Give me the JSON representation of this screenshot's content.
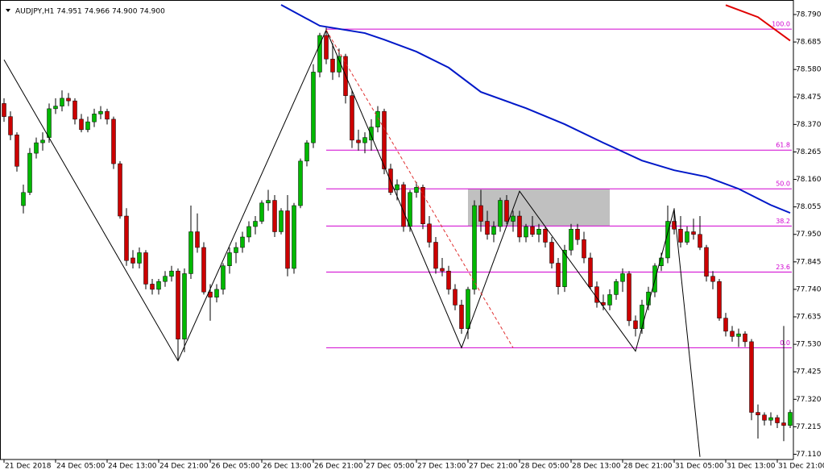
{
  "chart_data": {
    "type": "candlestick",
    "header": "AUDJPY,H1  74.951 74.966 74.900 74.900",
    "ylim": [
      77.09,
      78.83
    ],
    "yticks": [
      {
        "value": 78.79,
        "label": "78.790"
      },
      78.685,
      {
        "value": 78.58,
        "label": "78.580"
      },
      78.475,
      {
        "value": 78.37,
        "label": "78.370"
      },
      78.265,
      {
        "value": 78.16,
        "label": "78.160"
      },
      78.055,
      {
        "value": 77.95,
        "label": "77.950"
      },
      77.845,
      {
        "value": 77.74,
        "label": "77.740"
      },
      77.635,
      {
        "value": 77.53,
        "label": "77.530"
      },
      77.425,
      {
        "value": 77.32,
        "label": "77.320"
      },
      77.215,
      {
        "value": 77.11,
        "label": "77.110"
      }
    ],
    "categories": [
      "21 Dec 2018",
      null,
      null,
      null,
      null,
      null,
      null,
      null,
      "24 Dec 05:00",
      null,
      null,
      null,
      null,
      null,
      null,
      null,
      "24 Dec 13:00",
      null,
      null,
      null,
      null,
      null,
      null,
      null,
      "24 Dec 21:00",
      null,
      null,
      null,
      null,
      null,
      null,
      null,
      "26 Dec 05:00",
      null,
      null,
      null,
      null,
      null,
      null,
      null,
      "26 Dec 13:00",
      null,
      null,
      null,
      null,
      null,
      null,
      null,
      "26 Dec 21:00",
      null,
      null,
      null,
      null,
      null,
      null,
      null,
      "27 Dec 05:00",
      null,
      null,
      null,
      null,
      null,
      null,
      null,
      "27 Dec 13:00",
      null,
      null,
      null,
      null,
      null,
      null,
      null,
      "27 Dec 21:00",
      null,
      null,
      null,
      null,
      null,
      null,
      null,
      "28 Dec 05:00",
      null,
      null,
      null,
      null,
      null,
      null,
      null,
      "28 Dec 13:00",
      null,
      null,
      null,
      null,
      null,
      null,
      null,
      "28 Dec 21:00",
      null,
      null,
      null,
      null,
      null,
      null,
      null,
      "31 Dec 05:00",
      null,
      null,
      null,
      null,
      null,
      null,
      null,
      "31 Dec 13:00",
      null,
      null,
      null,
      null,
      null,
      null,
      null,
      "31 Dec 21:00",
      null,
      null
    ],
    "up_color": "#00b800",
    "down_color": "#cc0000",
    "ohlc": [
      [
        78.45,
        78.47,
        78.38,
        78.4
      ],
      [
        78.4,
        78.42,
        78.31,
        78.33
      ],
      [
        78.33,
        78.34,
        78.19,
        78.21
      ],
      [
        78.06,
        78.14,
        78.03,
        78.11
      ],
      [
        78.11,
        78.28,
        78.1,
        78.26
      ],
      [
        78.26,
        78.32,
        78.24,
        78.3
      ],
      [
        78.3,
        78.34,
        78.27,
        78.31
      ],
      [
        78.32,
        78.45,
        78.3,
        78.43
      ],
      [
        78.43,
        78.47,
        78.41,
        78.44
      ],
      [
        78.44,
        78.5,
        78.42,
        78.47
      ],
      [
        78.47,
        78.49,
        78.44,
        78.46
      ],
      [
        78.46,
        78.47,
        78.37,
        78.39
      ],
      [
        78.39,
        78.41,
        78.34,
        78.35
      ],
      [
        78.35,
        78.4,
        78.34,
        78.38
      ],
      [
        78.38,
        78.43,
        78.36,
        78.41
      ],
      [
        78.41,
        78.44,
        78.39,
        78.42
      ],
      [
        78.42,
        78.43,
        78.37,
        78.39
      ],
      [
        78.39,
        78.4,
        78.2,
        78.22
      ],
      [
        78.22,
        78.23,
        78.01,
        78.02
      ],
      [
        78.02,
        78.05,
        77.83,
        77.85
      ],
      [
        77.86,
        77.89,
        77.82,
        77.84
      ],
      [
        77.84,
        77.9,
        77.82,
        77.88
      ],
      [
        77.88,
        77.89,
        77.74,
        77.76
      ],
      [
        77.76,
        77.78,
        77.72,
        77.74
      ],
      [
        77.74,
        77.78,
        77.72,
        77.77
      ],
      [
        77.77,
        77.81,
        77.75,
        77.79
      ],
      [
        77.79,
        77.83,
        77.77,
        77.81
      ],
      [
        77.81,
        77.82,
        77.47,
        77.55
      ],
      [
        77.55,
        77.82,
        77.5,
        77.8
      ],
      [
        77.8,
        78.06,
        77.78,
        77.96
      ],
      [
        77.96,
        78.03,
        77.88,
        77.9
      ],
      [
        77.9,
        77.92,
        77.72,
        77.73
      ],
      [
        77.73,
        77.76,
        77.62,
        77.71
      ],
      [
        77.71,
        77.76,
        77.69,
        77.74
      ],
      [
        77.74,
        77.84,
        77.72,
        77.83
      ],
      [
        77.83,
        77.9,
        77.8,
        77.88
      ],
      [
        77.88,
        77.92,
        77.84,
        77.9
      ],
      [
        77.9,
        77.96,
        77.88,
        77.94
      ],
      [
        77.94,
        78.0,
        77.92,
        77.98
      ],
      [
        77.98,
        78.02,
        77.95,
        78.0
      ],
      [
        78.0,
        78.08,
        77.99,
        78.07
      ],
      [
        78.07,
        78.12,
        78.04,
        78.08
      ],
      [
        78.08,
        78.1,
        77.94,
        77.96
      ],
      [
        77.96,
        78.05,
        77.95,
        78.04
      ],
      [
        78.04,
        78.1,
        77.79,
        77.82
      ],
      [
        77.82,
        78.07,
        77.8,
        78.06
      ],
      [
        78.06,
        78.24,
        78.05,
        78.23
      ],
      [
        78.23,
        78.31,
        78.21,
        78.3
      ],
      [
        78.3,
        78.6,
        78.28,
        78.57
      ],
      [
        78.57,
        78.72,
        78.55,
        78.71
      ],
      [
        78.71,
        78.74,
        78.6,
        78.62
      ],
      [
        78.62,
        78.68,
        78.54,
        78.57
      ],
      [
        78.57,
        78.66,
        78.55,
        78.63
      ],
      [
        78.63,
        78.64,
        78.45,
        78.48
      ],
      [
        78.48,
        78.5,
        78.28,
        78.31
      ],
      [
        78.31,
        78.35,
        78.27,
        78.3
      ],
      [
        78.3,
        78.34,
        78.26,
        78.32
      ],
      [
        78.31,
        78.39,
        78.27,
        78.36
      ],
      [
        78.36,
        78.44,
        78.34,
        78.42
      ],
      [
        78.42,
        78.43,
        78.18,
        78.2
      ],
      [
        78.2,
        78.22,
        78.1,
        78.11
      ],
      [
        78.12,
        78.16,
        78.08,
        78.14
      ],
      [
        78.14,
        78.15,
        77.96,
        77.98
      ],
      [
        77.98,
        78.12,
        77.96,
        78.11
      ],
      [
        78.11,
        78.15,
        78.09,
        78.13
      ],
      [
        78.13,
        78.14,
        77.97,
        77.99
      ],
      [
        77.99,
        78.02,
        77.9,
        77.92
      ],
      [
        77.92,
        77.94,
        77.8,
        77.82
      ],
      [
        77.82,
        77.86,
        77.79,
        77.81
      ],
      [
        77.81,
        77.83,
        77.72,
        77.74
      ],
      [
        77.74,
        77.76,
        77.66,
        77.68
      ],
      [
        77.68,
        77.7,
        77.57,
        77.59
      ],
      [
        77.59,
        77.75,
        77.55,
        77.74
      ],
      [
        77.74,
        78.08,
        77.72,
        78.06
      ],
      [
        78.06,
        78.12,
        77.96,
        78.0
      ],
      [
        78.0,
        78.04,
        77.93,
        77.95
      ],
      [
        77.95,
        78.0,
        77.92,
        77.98
      ],
      [
        77.98,
        78.09,
        77.96,
        78.08
      ],
      [
        78.08,
        78.1,
        77.99,
        78.0
      ],
      [
        78.0,
        78.04,
        77.96,
        78.02
      ],
      [
        78.02,
        78.04,
        77.92,
        77.94
      ],
      [
        77.94,
        77.99,
        77.92,
        77.98
      ],
      [
        77.98,
        78.02,
        77.94,
        77.95
      ],
      [
        77.95,
        77.99,
        77.92,
        77.97
      ],
      [
        77.97,
        77.98,
        77.9,
        77.92
      ],
      [
        77.92,
        77.94,
        77.82,
        77.84
      ],
      [
        77.84,
        77.86,
        77.72,
        77.75
      ],
      [
        77.75,
        77.91,
        77.73,
        77.89
      ],
      [
        77.89,
        77.99,
        77.87,
        77.97
      ],
      [
        77.97,
        77.99,
        77.91,
        77.93
      ],
      [
        77.93,
        77.96,
        77.84,
        77.86
      ],
      [
        77.86,
        77.88,
        77.74,
        77.75
      ],
      [
        77.75,
        77.77,
        77.67,
        77.69
      ],
      [
        77.69,
        77.72,
        77.66,
        77.68
      ],
      [
        77.68,
        77.74,
        77.66,
        77.72
      ],
      [
        77.72,
        77.78,
        77.7,
        77.77
      ],
      [
        77.77,
        77.82,
        77.73,
        77.8
      ],
      [
        77.8,
        77.81,
        77.6,
        77.62
      ],
      [
        77.62,
        77.64,
        77.56,
        77.59
      ],
      [
        77.59,
        77.7,
        77.57,
        77.68
      ],
      [
        77.68,
        77.75,
        77.66,
        77.73
      ],
      [
        77.73,
        77.84,
        77.71,
        77.83
      ],
      [
        77.83,
        77.88,
        77.81,
        77.86
      ],
      [
        77.86,
        78.06,
        77.84,
        78.0
      ],
      [
        78.0,
        78.05,
        77.95,
        77.97
      ],
      [
        77.97,
        78.02,
        77.9,
        77.92
      ],
      [
        77.92,
        77.98,
        77.91,
        77.96
      ],
      [
        77.96,
        78.01,
        77.93,
        77.95
      ],
      [
        77.95,
        78.02,
        77.89,
        77.9
      ],
      [
        77.9,
        77.91,
        77.77,
        77.79
      ],
      [
        77.79,
        77.81,
        77.74,
        77.77
      ],
      [
        77.77,
        77.78,
        77.62,
        77.63
      ],
      [
        77.63,
        77.65,
        77.56,
        77.58
      ],
      [
        77.58,
        77.6,
        77.54,
        77.56
      ],
      [
        77.56,
        77.59,
        77.52,
        77.57
      ],
      [
        77.57,
        77.58,
        77.52,
        77.54
      ],
      [
        77.54,
        77.55,
        77.24,
        77.27
      ],
      [
        77.27,
        77.3,
        77.17,
        77.26
      ],
      [
        77.26,
        77.27,
        77.22,
        77.24
      ],
      [
        77.24,
        77.27,
        77.22,
        77.25
      ],
      [
        77.25,
        77.26,
        77.21,
        77.23
      ],
      [
        77.23,
        77.6,
        77.16,
        77.22
      ],
      [
        77.22,
        77.28,
        77.21,
        77.27
      ]
    ],
    "lines": [
      {
        "color": "#0018c8",
        "width": 2,
        "x": [
          43,
          49,
          56,
          59,
          64,
          69,
          74,
          81,
          87,
          93,
          99,
          104,
          109,
          114,
          119,
          122
        ],
        "values": [
          78.827,
          78.747,
          78.719,
          78.694,
          78.648,
          78.587,
          78.494,
          78.432,
          78.371,
          78.3,
          78.232,
          78.195,
          78.17,
          78.124,
          78.062,
          78.032
        ]
      },
      {
        "color": "#e00000",
        "width": 2,
        "x": [
          112,
          117,
          122
        ],
        "values": [
          78.826,
          78.78,
          78.69
        ]
      },
      {
        "color": "#000000",
        "width": 1,
        "x": [
          0,
          27,
          50,
          71,
          80,
          98,
          104,
          108
        ],
        "values": [
          78.617,
          77.467,
          78.731,
          77.517,
          78.115,
          77.504,
          78.047,
          77.1
        ]
      },
      {
        "color": "#e03030",
        "width": 1,
        "dash": true,
        "x": [
          50,
          79
        ],
        "values": [
          78.731,
          77.517
        ]
      }
    ],
    "rectangle": {
      "color": "#c0c0c0",
      "x": [
        72,
        94
      ],
      "values": [
        78.124,
        77.982
      ]
    },
    "fib": {
      "color": "#d000d0",
      "start": 50,
      "levels": [
        {
          "label": "100.0",
          "price": 78.734
        },
        {
          "label": "61.8",
          "price": 78.272
        },
        {
          "label": "50.0",
          "price": 78.124
        },
        {
          "label": "38.2",
          "price": 77.982
        },
        {
          "label": "23.6",
          "price": 77.806
        },
        {
          "label": "0.0",
          "price": 77.517
        }
      ]
    }
  }
}
